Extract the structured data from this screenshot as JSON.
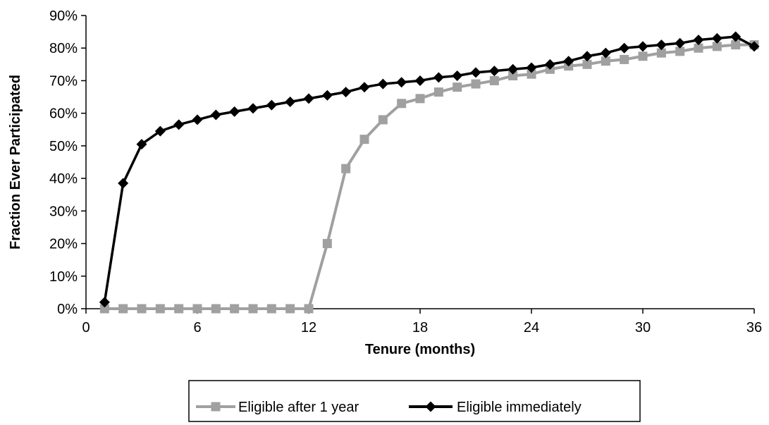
{
  "chart_data": {
    "type": "line",
    "title": "",
    "xlabel": "Tenure (months)",
    "ylabel": "Fraction Ever Participated",
    "xlim": [
      0,
      36
    ],
    "ylim": [
      0,
      0.9
    ],
    "x_ticks": [
      0,
      6,
      12,
      18,
      24,
      30,
      36
    ],
    "x_tick_labels": [
      "0",
      "6",
      "12",
      "18",
      "24",
      "30",
      "36"
    ],
    "y_ticks": [
      0,
      0.1,
      0.2,
      0.3,
      0.4,
      0.5,
      0.6,
      0.7,
      0.8,
      0.9
    ],
    "y_tick_labels": [
      "0%",
      "10%",
      "20%",
      "30%",
      "40%",
      "50%",
      "60%",
      "70%",
      "80%",
      "90%"
    ],
    "grid": false,
    "legend_position": "bottom",
    "series": [
      {
        "name": "Eligible after 1 year",
        "color": "#a0a0a0",
        "marker": "square",
        "x": [
          1,
          2,
          3,
          4,
          5,
          6,
          7,
          8,
          9,
          10,
          11,
          12,
          13,
          14,
          15,
          16,
          17,
          18,
          19,
          20,
          21,
          22,
          23,
          24,
          25,
          26,
          27,
          28,
          29,
          30,
          31,
          32,
          33,
          34,
          35,
          36
        ],
        "y": [
          0,
          0,
          0,
          0,
          0,
          0,
          0,
          0,
          0,
          0,
          0,
          0,
          0.2,
          0.43,
          0.52,
          0.58,
          0.63,
          0.645,
          0.665,
          0.68,
          0.69,
          0.7,
          0.715,
          0.72,
          0.735,
          0.745,
          0.75,
          0.76,
          0.765,
          0.775,
          0.785,
          0.79,
          0.8,
          0.805,
          0.81,
          0.81
        ]
      },
      {
        "name": "Eligible immediately",
        "color": "#000000",
        "marker": "diamond",
        "x": [
          1,
          2,
          3,
          4,
          5,
          6,
          7,
          8,
          9,
          10,
          11,
          12,
          13,
          14,
          15,
          16,
          17,
          18,
          19,
          20,
          21,
          22,
          23,
          24,
          25,
          26,
          27,
          28,
          29,
          30,
          31,
          32,
          33,
          34,
          35,
          36
        ],
        "y": [
          0.02,
          0.385,
          0.505,
          0.545,
          0.565,
          0.58,
          0.595,
          0.605,
          0.615,
          0.625,
          0.635,
          0.645,
          0.655,
          0.665,
          0.68,
          0.69,
          0.695,
          0.7,
          0.71,
          0.715,
          0.725,
          0.73,
          0.735,
          0.74,
          0.75,
          0.76,
          0.775,
          0.785,
          0.8,
          0.805,
          0.81,
          0.815,
          0.825,
          0.83,
          0.835,
          0.805
        ]
      }
    ]
  }
}
